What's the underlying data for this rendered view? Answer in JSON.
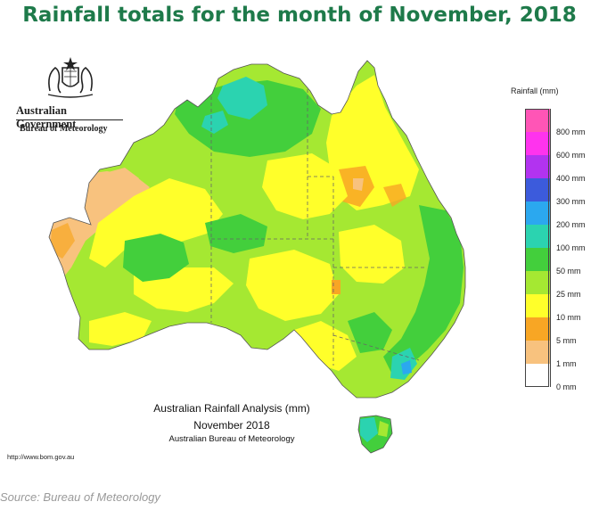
{
  "title": "Rainfall totals for the month of November, 2018",
  "branding": {
    "government": "Australian Government",
    "agency": "Bureau of Meteorology"
  },
  "legend": {
    "title": "Rainfall (mm)",
    "items": [
      {
        "label": "800 mm",
        "color": "#ff55b6"
      },
      {
        "label": "600 mm",
        "color": "#ff33ee"
      },
      {
        "label": "400 mm",
        "color": "#b233f0"
      },
      {
        "label": "300 mm",
        "color": "#3c5bdc"
      },
      {
        "label": "200 mm",
        "color": "#2ba8ef"
      },
      {
        "label": "100 mm",
        "color": "#2bd3b0"
      },
      {
        "label": "50 mm",
        "color": "#43cf3c"
      },
      {
        "label": "25 mm",
        "color": "#a5e832"
      },
      {
        "label": "10 mm",
        "color": "#ffff2a"
      },
      {
        "label": "5 mm",
        "color": "#f8a624"
      },
      {
        "label": "1 mm",
        "color": "#f8c27e"
      },
      {
        "label": "0 mm",
        "color": "#ffffff"
      }
    ]
  },
  "analysis": {
    "line1": "Australian Rainfall Analysis (mm)",
    "line2": "November 2018",
    "line3": "Australian Bureau of Meteorology"
  },
  "url": "http://www.bom.gov.au",
  "source": "Source: Bureau of Meteorology"
}
